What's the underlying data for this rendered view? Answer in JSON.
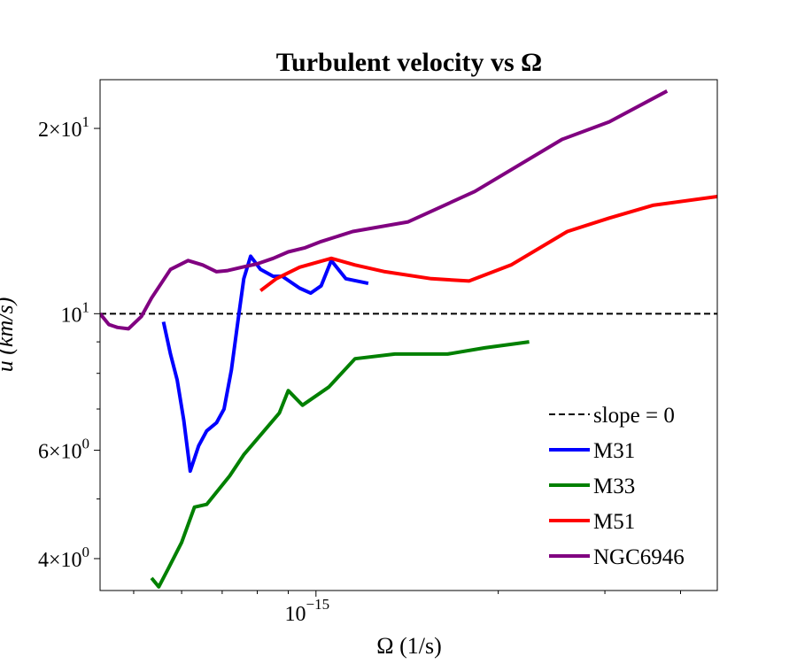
{
  "chart_data": {
    "type": "line",
    "title": "Turbulent velocity vs Ω",
    "xlabel": "Ω (1/s)",
    "ylabel": "u (km/s)",
    "xscale": "log",
    "yscale": "log",
    "xlim": [
      4.4e-16,
      4.6e-15
    ],
    "ylim": [
      3.55,
      24.0
    ],
    "x_ticks": [
      {
        "value": 1e-15,
        "mantissa": "10",
        "exponent": "−15"
      }
    ],
    "y_ticks": [
      {
        "value": 4,
        "mantissa": "4×10",
        "exponent": "0"
      },
      {
        "value": 6,
        "mantissa": "6×10",
        "exponent": "0"
      },
      {
        "value": 10,
        "mantissa": "10",
        "exponent": "1"
      },
      {
        "value": 20,
        "mantissa": "2×10",
        "exponent": "1"
      }
    ],
    "legend_position": "lower-right",
    "reference_line": {
      "name": "slope = 0",
      "y": 10,
      "color": "#000000",
      "dash": true
    },
    "series": [
      {
        "name": "M31",
        "color": "#0000ff",
        "x": [
          5.6e-16,
          5.75e-16,
          5.9e-16,
          6.05e-16,
          6.2e-16,
          6.4e-16,
          6.6e-16,
          6.85e-16,
          7.05e-16,
          7.25e-16,
          7.45e-16,
          7.6e-16,
          7.8e-16,
          8.1e-16,
          8.5e-16,
          8.8e-16,
          9.4e-16,
          9.8e-16,
          1.02e-15,
          1.06e-15,
          1.12e-15,
          1.22e-15
        ],
        "y": [
          9.7,
          8.6,
          7.8,
          6.7,
          5.55,
          6.1,
          6.45,
          6.65,
          7.0,
          8.1,
          9.9,
          11.4,
          12.4,
          11.8,
          11.5,
          11.5,
          11.0,
          10.8,
          11.1,
          12.2,
          11.4,
          11.2
        ]
      },
      {
        "name": "M33",
        "color": "#008000",
        "x": [
          5.35e-16,
          5.5e-16,
          5.7e-16,
          6e-16,
          6.3e-16,
          6.6e-16,
          7.2e-16,
          7.6e-16,
          8.1e-16,
          8.7e-16,
          9e-16,
          9.5e-16,
          1.05e-15,
          1.16e-15,
          1.35e-15,
          1.65e-15,
          1.9e-15,
          2.25e-15
        ],
        "y": [
          3.72,
          3.6,
          3.85,
          4.25,
          4.85,
          4.9,
          5.45,
          5.9,
          6.35,
          6.9,
          7.5,
          7.1,
          7.6,
          8.45,
          8.6,
          8.6,
          8.8,
          9.0
        ]
      },
      {
        "name": "M51",
        "color": "#ff0000",
        "x": [
          8.1e-16,
          8.6e-16,
          9.4e-16,
          1.06e-15,
          1.16e-15,
          1.3e-15,
          1.55e-15,
          1.79e-15,
          2.1e-15,
          2.6e-15,
          3.05e-15,
          3.6e-15,
          4.6e-15
        ],
        "y": [
          10.9,
          11.4,
          11.9,
          12.3,
          12.0,
          11.7,
          11.4,
          11.3,
          12.0,
          13.6,
          14.3,
          15.0,
          15.5
        ]
      },
      {
        "name": "NGC6946",
        "color": "#800080",
        "x": [
          4.4e-16,
          4.55e-16,
          4.7e-16,
          4.9e-16,
          5.15e-16,
          5.35e-16,
          5.75e-16,
          6.15e-16,
          6.5e-16,
          6.85e-16,
          7.15e-16,
          7.55e-16,
          8e-16,
          8.5e-16,
          9e-16,
          9.6e-16,
          1.02e-15,
          1.15e-15,
          1.42e-15,
          1.83e-15,
          2.55e-15,
          3.05e-15,
          3.8e-15
        ],
        "y": [
          10.0,
          9.6,
          9.5,
          9.45,
          9.9,
          10.6,
          11.8,
          12.2,
          12.0,
          11.7,
          11.75,
          11.9,
          12.05,
          12.3,
          12.6,
          12.8,
          13.1,
          13.6,
          14.1,
          15.8,
          19.2,
          20.5,
          23.0
        ]
      }
    ]
  }
}
